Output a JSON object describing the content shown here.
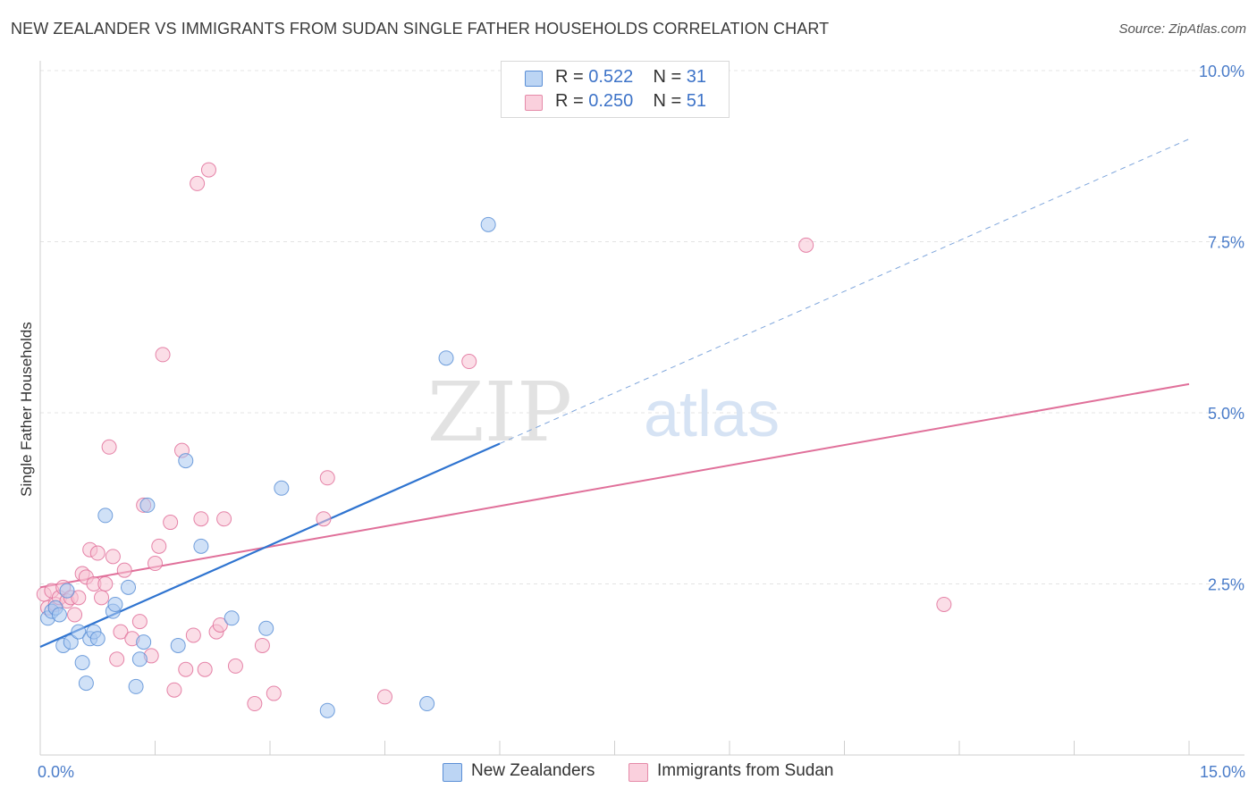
{
  "title": "NEW ZEALANDER VS IMMIGRANTS FROM SUDAN SINGLE FATHER HOUSEHOLDS CORRELATION CHART",
  "source": "Source: ZipAtlas.com",
  "watermark": {
    "zip": "ZIP",
    "atlas": "atlas"
  },
  "legend": {
    "r_label": "R =",
    "n_label": "N =",
    "series": [
      {
        "name": "New Zealanders",
        "r": "0.522",
        "n": "31",
        "fill": "#a9c8f0",
        "stroke": "#5b8fd6"
      },
      {
        "name": "Immigrants from Sudan",
        "r": "0.250",
        "n": "51",
        "fill": "#f8c3d3",
        "stroke": "#e58aa8"
      }
    ]
  },
  "chart_data": {
    "type": "scatter",
    "title": "NEW ZEALANDER VS IMMIGRANTS FROM SUDAN SINGLE FATHER HOUSEHOLDS CORRELATION CHART",
    "xlabel": "",
    "ylabel": "Single Father Households",
    "xlim": [
      0,
      15
    ],
    "ylim": [
      0,
      10.2
    ],
    "x_tick_labels": [
      {
        "value": 0,
        "label": "0.0%"
      },
      {
        "value": 15,
        "label": "15.0%"
      }
    ],
    "y_tick_labels": [
      {
        "value": 2.5,
        "label": "2.5%"
      },
      {
        "value": 5.0,
        "label": "5.0%"
      },
      {
        "value": 7.5,
        "label": "7.5%"
      },
      {
        "value": 10.0,
        "label": "10.0%"
      }
    ],
    "x_minor_ticks": [
      0,
      1.5,
      3,
      4.5,
      6,
      7.5,
      9,
      10.5,
      12,
      13.5,
      15
    ],
    "series": [
      {
        "name": "New Zealanders",
        "color": "#5b8fd6",
        "fill": "#a9c8f0",
        "points": [
          [
            0.1,
            2.0
          ],
          [
            0.15,
            2.1
          ],
          [
            0.2,
            2.15
          ],
          [
            0.25,
            2.05
          ],
          [
            0.3,
            1.6
          ],
          [
            0.35,
            2.4
          ],
          [
            0.4,
            1.65
          ],
          [
            0.5,
            1.8
          ],
          [
            0.55,
            1.35
          ],
          [
            0.6,
            1.05
          ],
          [
            0.65,
            1.7
          ],
          [
            0.7,
            1.8
          ],
          [
            0.75,
            1.7
          ],
          [
            0.85,
            3.5
          ],
          [
            0.95,
            2.1
          ],
          [
            0.98,
            2.2
          ],
          [
            1.15,
            2.45
          ],
          [
            1.25,
            1.0
          ],
          [
            1.3,
            1.4
          ],
          [
            1.35,
            1.65
          ],
          [
            1.4,
            3.65
          ],
          [
            1.8,
            1.6
          ],
          [
            1.9,
            4.3
          ],
          [
            2.1,
            3.05
          ],
          [
            2.5,
            2.0
          ],
          [
            2.95,
            1.85
          ],
          [
            3.15,
            3.9
          ],
          [
            3.75,
            0.65
          ],
          [
            5.05,
            0.75
          ],
          [
            5.3,
            5.8
          ],
          [
            5.85,
            7.75
          ]
        ],
        "trend": {
          "x0": 0,
          "y0": 1.58,
          "x1": 6.0,
          "y1": 4.55,
          "dash_x1": 15,
          "dash_y1": 9.0
        }
      },
      {
        "name": "Immigrants from Sudan",
        "color": "#e0709a",
        "fill": "#f8c3d3",
        "points": [
          [
            0.05,
            2.35
          ],
          [
            0.1,
            2.15
          ],
          [
            0.15,
            2.4
          ],
          [
            0.2,
            2.2
          ],
          [
            0.25,
            2.3
          ],
          [
            0.3,
            2.45
          ],
          [
            0.35,
            2.25
          ],
          [
            0.4,
            2.3
          ],
          [
            0.45,
            2.05
          ],
          [
            0.5,
            2.3
          ],
          [
            0.55,
            2.65
          ],
          [
            0.6,
            2.6
          ],
          [
            0.65,
            3.0
          ],
          [
            0.7,
            2.5
          ],
          [
            0.75,
            2.95
          ],
          [
            0.85,
            2.5
          ],
          [
            0.9,
            4.5
          ],
          [
            0.95,
            2.9
          ],
          [
            1.0,
            1.4
          ],
          [
            1.05,
            1.8
          ],
          [
            1.1,
            2.7
          ],
          [
            1.2,
            1.7
          ],
          [
            1.3,
            1.95
          ],
          [
            1.35,
            3.65
          ],
          [
            1.45,
            1.45
          ],
          [
            1.5,
            2.8
          ],
          [
            1.55,
            3.05
          ],
          [
            1.6,
            5.85
          ],
          [
            1.7,
            3.4
          ],
          [
            1.75,
            0.95
          ],
          [
            1.85,
            4.45
          ],
          [
            1.9,
            1.25
          ],
          [
            2.0,
            1.75
          ],
          [
            2.05,
            8.35
          ],
          [
            2.1,
            3.45
          ],
          [
            2.15,
            1.25
          ],
          [
            2.2,
            8.55
          ],
          [
            2.3,
            1.8
          ],
          [
            2.35,
            1.9
          ],
          [
            2.4,
            3.45
          ],
          [
            2.55,
            1.3
          ],
          [
            2.8,
            0.75
          ],
          [
            2.9,
            1.6
          ],
          [
            3.05,
            0.9
          ],
          [
            3.7,
            3.45
          ],
          [
            3.75,
            4.05
          ],
          [
            4.5,
            0.85
          ],
          [
            5.6,
            5.75
          ],
          [
            10.0,
            7.45
          ],
          [
            11.8,
            2.2
          ],
          [
            0.8,
            2.3
          ]
        ],
        "trend": {
          "x0": 0,
          "y0": 2.45,
          "x1": 15,
          "y1": 5.42
        }
      }
    ]
  }
}
